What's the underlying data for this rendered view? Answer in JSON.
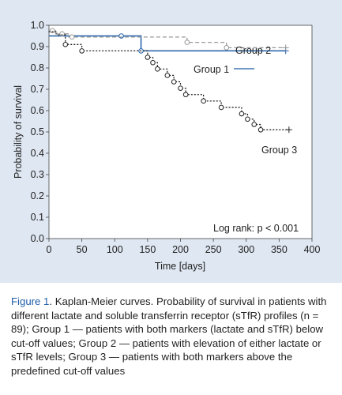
{
  "chart_data": {
    "type": "line",
    "title": "",
    "xlabel": "Time [days]",
    "ylabel": "Probability of survival",
    "xlim": [
      0,
      400
    ],
    "ylim": [
      0,
      1.0
    ],
    "xticks": [
      0,
      50,
      100,
      150,
      200,
      250,
      300,
      350,
      400
    ],
    "yticks": [
      0.0,
      0.1,
      0.2,
      0.3,
      0.4,
      0.5,
      0.6,
      0.7,
      0.8,
      0.9,
      1.0
    ],
    "ytick_labels": [
      "0.0",
      "0.1",
      "0.2",
      "0.3",
      "0.4",
      "0.5",
      "0.6",
      "0.7",
      "0.8",
      "0.9",
      "1.0"
    ],
    "grid": false,
    "annotation": "Log rank: p < 0.001",
    "series": [
      {
        "name": "Group 1",
        "style": "solid",
        "color": "#1f5ea8",
        "steps": [
          [
            0,
            0.95
          ],
          [
            140,
            0.95
          ],
          [
            140,
            0.88
          ],
          [
            360,
            0.88
          ]
        ],
        "censored_x": [
          110,
          140
        ],
        "end_x": 360
      },
      {
        "name": "Group 2",
        "style": "dashed",
        "color": "#999999",
        "steps": [
          [
            0,
            0.975
          ],
          [
            10,
            0.975
          ],
          [
            10,
            0.96
          ],
          [
            30,
            0.96
          ],
          [
            30,
            0.945
          ],
          [
            210,
            0.945
          ],
          [
            210,
            0.92
          ],
          [
            270,
            0.92
          ],
          [
            270,
            0.895
          ],
          [
            360,
            0.895
          ]
        ],
        "censored_x": [
          5,
          20,
          35,
          210,
          270
        ],
        "end_x": 360
      },
      {
        "name": "Group 3",
        "style": "dotted",
        "color": "#222222",
        "steps": [
          [
            0,
            0.97
          ],
          [
            12,
            0.97
          ],
          [
            12,
            0.955
          ],
          [
            25,
            0.955
          ],
          [
            25,
            0.91
          ],
          [
            50,
            0.91
          ],
          [
            50,
            0.88
          ],
          [
            150,
            0.88
          ],
          [
            150,
            0.85
          ],
          [
            158,
            0.85
          ],
          [
            158,
            0.825
          ],
          [
            165,
            0.825
          ],
          [
            165,
            0.795
          ],
          [
            180,
            0.795
          ],
          [
            180,
            0.765
          ],
          [
            190,
            0.765
          ],
          [
            190,
            0.735
          ],
          [
            200,
            0.735
          ],
          [
            200,
            0.705
          ],
          [
            208,
            0.705
          ],
          [
            208,
            0.675
          ],
          [
            235,
            0.675
          ],
          [
            235,
            0.645
          ],
          [
            262,
            0.645
          ],
          [
            262,
            0.615
          ],
          [
            293,
            0.615
          ],
          [
            293,
            0.585
          ],
          [
            302,
            0.585
          ],
          [
            302,
            0.56
          ],
          [
            312,
            0.56
          ],
          [
            312,
            0.535
          ],
          [
            322,
            0.535
          ],
          [
            322,
            0.51
          ],
          [
            365,
            0.51
          ]
        ],
        "censored_x": [
          25,
          50,
          150,
          158,
          165,
          180,
          190,
          200,
          208,
          235,
          262,
          293,
          302,
          312,
          322
        ],
        "end_x": 365
      }
    ]
  },
  "caption": {
    "label": "Figure 1",
    "text": ". Kaplan-Meier curves. Probability of survival in patients with different lactate and soluble transferrin receptor (sTfR) profiles (n = 89); Group 1 — patients with both markers (lactate and sTfR) below cut-off values; Group 2 — patients with elevation of either lactate or sTfR levels; Group 3 — patients with both markers above the predefined cut-off values"
  }
}
